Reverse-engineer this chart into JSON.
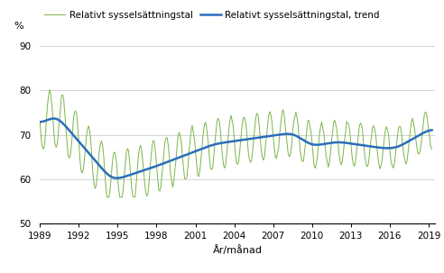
{
  "title": "",
  "ylabel": "%",
  "xlabel": "År/månad",
  "legend1": "Relativt sysselsättningstal",
  "legend2": "Relativt sysselsättningstal, trend",
  "color_line": "#7ab648",
  "color_trend": "#2a6ebb",
  "ylim": [
    50,
    93
  ],
  "yticks": [
    50,
    60,
    70,
    80,
    90
  ],
  "xticks": [
    1989,
    1992,
    1995,
    1998,
    2001,
    2004,
    2007,
    2010,
    2013,
    2016,
    2019
  ],
  "background_color": "#ffffff",
  "grid_color": "#cccccc"
}
